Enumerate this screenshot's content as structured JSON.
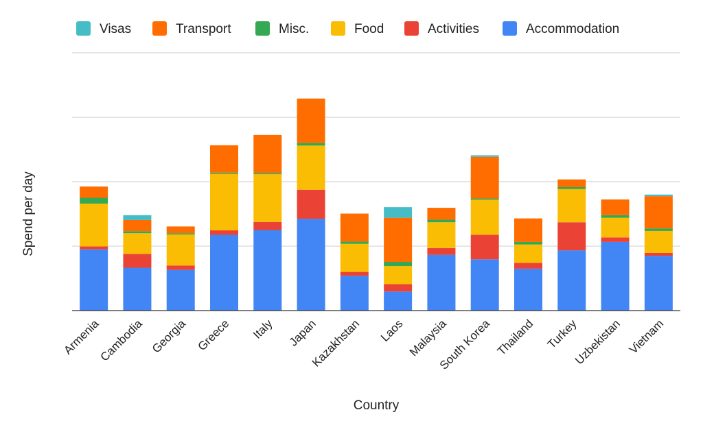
{
  "chart_data": {
    "type": "bar",
    "stacked": true,
    "xlabel": "Country",
    "ylabel": "Spend per day",
    "ylim": [
      0,
      80
    ],
    "y_gridlines": [
      0,
      20,
      40,
      60,
      80
    ],
    "y_tick_labels_shown": false,
    "grid": true,
    "legend_position": "top",
    "categories": [
      "Armenia",
      "Cambodia",
      "Georgia",
      "Greece",
      "Italy",
      "Japan",
      "Kazakhstan",
      "Laos",
      "Malaysia",
      "South Korea",
      "Thailand",
      "Turkey",
      "Uzbekistan",
      "Vietnam"
    ],
    "series": [
      {
        "name": "Accommodation",
        "color": "#4285f4",
        "values": [
          19,
          13.3,
          12.6,
          23.5,
          25,
          28.5,
          10.8,
          5.9,
          17.3,
          15.9,
          13,
          18.7,
          21.3,
          17
        ]
      },
      {
        "name": "Activities",
        "color": "#ea4335",
        "values": [
          0.9,
          4.3,
          1.4,
          1.4,
          2.5,
          9,
          1.2,
          2.3,
          2.1,
          7.6,
          1.8,
          8.7,
          1.4,
          0.9
        ]
      },
      {
        "name": "Food",
        "color": "#fbbc04",
        "values": [
          13.3,
          6.4,
          9.6,
          17.5,
          14.8,
          13.7,
          8.7,
          5.6,
          8,
          10.9,
          5.7,
          10.3,
          6.1,
          6.8
        ]
      },
      {
        "name": "Misc.",
        "color": "#34a853",
        "values": [
          1.8,
          0.6,
          0.4,
          0.4,
          0.4,
          0.8,
          0.7,
          1.3,
          0.8,
          0.4,
          0.8,
          0.6,
          0.8,
          0.8
        ]
      },
      {
        "name": "Transport",
        "color": "#ff6d01",
        "values": [
          3.5,
          3.5,
          2.1,
          8.5,
          11.8,
          13.8,
          8.7,
          13.7,
          3.7,
          12.9,
          7.3,
          2.4,
          4.9,
          10
        ]
      },
      {
        "name": "Visas",
        "color": "#46bdc6",
        "values": [
          0,
          1.5,
          0,
          0,
          0,
          0,
          0,
          3.3,
          0,
          0.5,
          0,
          0,
          0,
          0.5
        ]
      }
    ],
    "legend_order": [
      "Visas",
      "Transport",
      "Misc.",
      "Food",
      "Activities",
      "Accommodation"
    ]
  }
}
